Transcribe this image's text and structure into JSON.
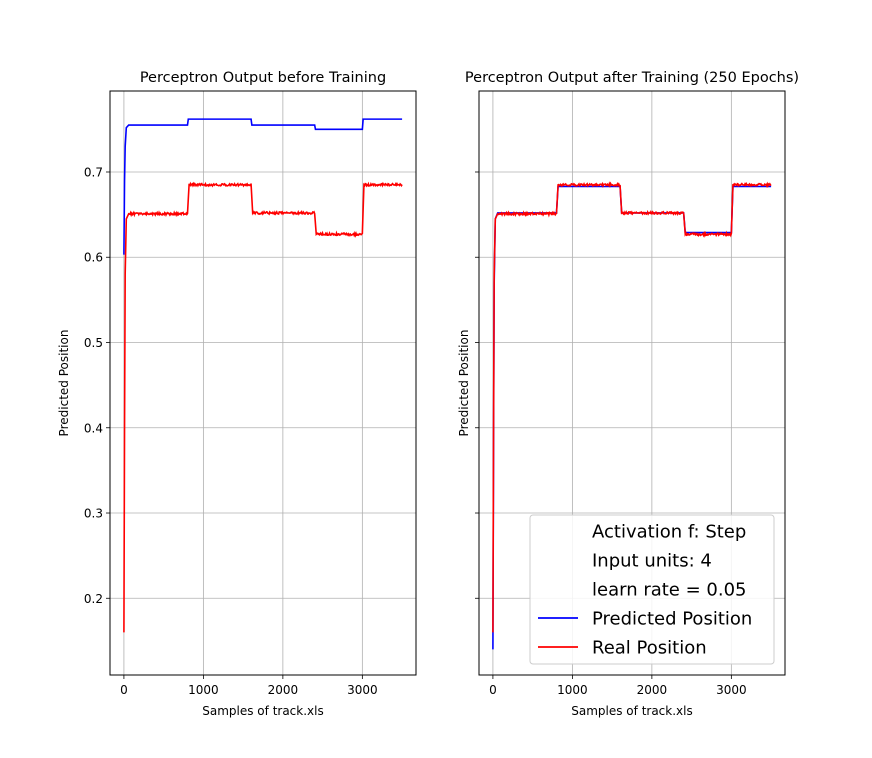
{
  "chart_data": [
    {
      "type": "line",
      "title": "Perceptron Output before Training",
      "xlabel": "Samples of track.xls",
      "ylabel": "Predicted Position",
      "xlim": [
        -175,
        3675
      ],
      "ylim": [
        0.11,
        0.795
      ],
      "xticks": [
        0,
        1000,
        2000,
        3000
      ],
      "xtick_labels": [
        "0",
        "1000",
        "2000",
        "3000"
      ],
      "yticks": [
        0.2,
        0.3,
        0.4,
        0.5,
        0.6,
        0.7
      ],
      "ytick_labels": [
        "0.2",
        "0.3",
        "0.4",
        "0.5",
        "0.6",
        "0.7"
      ],
      "grid": true,
      "series": [
        {
          "name": "Predicted Position",
          "color": "#0000ff",
          "points": [
            [
              0,
              0.603
            ],
            [
              8,
              0.69
            ],
            [
              16,
              0.73
            ],
            [
              30,
              0.752
            ],
            [
              60,
              0.755
            ],
            [
              800,
              0.755
            ],
            [
              810,
              0.762
            ],
            [
              1600,
              0.762
            ],
            [
              1610,
              0.755
            ],
            [
              2400,
              0.755
            ],
            [
              2410,
              0.75
            ],
            [
              3000,
              0.75
            ],
            [
              3010,
              0.762
            ],
            [
              3500,
              0.762
            ]
          ]
        },
        {
          "name": "Real Position",
          "color": "#ff0000",
          "points": [
            [
              0,
              0.16
            ],
            [
              8,
              0.4
            ],
            [
              16,
              0.58
            ],
            [
              30,
              0.645
            ],
            [
              60,
              0.651
            ],
            [
              800,
              0.651
            ],
            [
              820,
              0.685
            ],
            [
              1600,
              0.685
            ],
            [
              1620,
              0.652
            ],
            [
              2400,
              0.652
            ],
            [
              2420,
              0.627
            ],
            [
              3000,
              0.627
            ],
            [
              3020,
              0.685
            ],
            [
              3500,
              0.685
            ]
          ]
        }
      ]
    },
    {
      "type": "line",
      "title": "Perceptron Output after Training (250 Epochs)",
      "xlabel": "Samples of track.xls",
      "ylabel": "Predicted Position",
      "xlim": [
        -175,
        3675
      ],
      "ylim": [
        0.11,
        0.795
      ],
      "xticks": [
        0,
        1000,
        2000,
        3000
      ],
      "xtick_labels": [
        "0",
        "1000",
        "2000",
        "3000"
      ],
      "yticks": [
        0.2,
        0.3,
        0.4,
        0.5,
        0.6,
        0.7
      ],
      "ytick_labels": [
        "",
        "",
        "",
        "",
        "",
        ""
      ],
      "grid": true,
      "legend_position": "bottom-right",
      "legend_text": [
        "Activation f: Step",
        "Input units: 4",
        "learn rate = 0.05"
      ],
      "series": [
        {
          "name": "Predicted Position",
          "color": "#0000ff",
          "points": [
            [
              0,
              0.14
            ],
            [
              8,
              0.38
            ],
            [
              16,
              0.57
            ],
            [
              30,
              0.645
            ],
            [
              60,
              0.652
            ],
            [
              800,
              0.652
            ],
            [
              820,
              0.683
            ],
            [
              1600,
              0.683
            ],
            [
              1620,
              0.652
            ],
            [
              2400,
              0.652
            ],
            [
              2420,
              0.629
            ],
            [
              3000,
              0.629
            ],
            [
              3020,
              0.683
            ],
            [
              3500,
              0.683
            ]
          ]
        },
        {
          "name": "Real Position",
          "color": "#ff0000",
          "points": [
            [
              0,
              0.16
            ],
            [
              8,
              0.4
            ],
            [
              16,
              0.58
            ],
            [
              30,
              0.645
            ],
            [
              60,
              0.651
            ],
            [
              800,
              0.651
            ],
            [
              820,
              0.685
            ],
            [
              1600,
              0.685
            ],
            [
              1620,
              0.652
            ],
            [
              2400,
              0.652
            ],
            [
              2420,
              0.627
            ],
            [
              3000,
              0.627
            ],
            [
              3020,
              0.685
            ],
            [
              3500,
              0.685
            ]
          ]
        }
      ]
    }
  ]
}
